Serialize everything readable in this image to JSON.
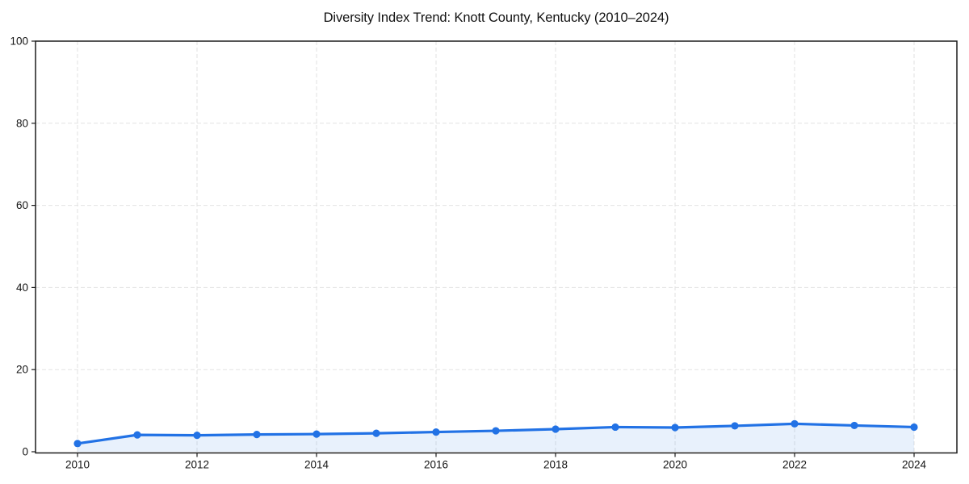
{
  "page": {
    "background_color": "#ffffff"
  },
  "chart_data": {
    "type": "line",
    "title": "Diversity Index Trend: Knott County, Kentucky (2010–2024)",
    "x": [
      2010,
      2011,
      2012,
      2013,
      2014,
      2015,
      2016,
      2017,
      2018,
      2019,
      2020,
      2021,
      2022,
      2023,
      2024
    ],
    "series": [
      {
        "name": "Diversity Index",
        "values": [
          2.0,
          4.1,
          4.0,
          4.2,
          4.3,
          4.5,
          4.8,
          5.1,
          5.5,
          6.0,
          5.9,
          6.3,
          6.8,
          6.4,
          6.0
        ]
      }
    ],
    "xlabel": "",
    "ylabel": "",
    "xlim": [
      2009.3,
      2024.7
    ],
    "ylim": [
      0,
      100
    ],
    "xticks": [
      2010,
      2012,
      2014,
      2016,
      2018,
      2020,
      2022,
      2024
    ],
    "yticks": [
      0,
      20,
      40,
      60,
      80,
      100
    ],
    "grid": true,
    "grid_style": "dashed",
    "legend_position": "none",
    "line_color": "#2272e5",
    "fill_color": "#2272e5",
    "fill_opacity": 0.1,
    "grid_color": "#e2e2e2",
    "spine_color": "#1c1c1c",
    "tick_label_color": "#141414",
    "marker": "circle"
  }
}
